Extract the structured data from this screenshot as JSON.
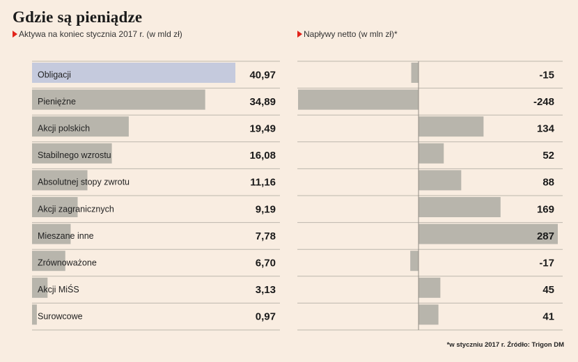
{
  "header": {
    "title": "Gdzie są pieniądze",
    "subtitle_left": "Aktywa na koniec stycznia 2017 r. (w mld zł)",
    "subtitle_right": "Napływy netto (w mln zł)*"
  },
  "colors": {
    "background": "#f9ede1",
    "bar": "#b8b5ac",
    "highlight_bar": "#c5cadd",
    "marker": "#e2231a",
    "grid": "#bcb6ac"
  },
  "chart_data": [
    {
      "type": "bar",
      "orientation": "horizontal",
      "title": "Aktywa na koniec stycznia 2017 r. (w mld zł)",
      "categories": [
        "Obligacji",
        "Pieniężne",
        "Akcji polskich",
        "Stabilnego wzrostu",
        "Absolutnej stopy zwrotu",
        "Akcji zagranicznych",
        "Mieszane inne",
        "Zrównoważone",
        "Akcji MiŚS",
        "Surowcowe"
      ],
      "values": [
        40.97,
        34.89,
        19.49,
        16.08,
        11.16,
        9.19,
        7.78,
        6.7,
        3.13,
        0.97
      ],
      "value_labels": [
        "40,97",
        "34,89",
        "19,49",
        "16,08",
        "11,16",
        "9,19",
        "7,78",
        "6,70",
        "3,13",
        "0,97"
      ],
      "highlight_index": 0,
      "xlim": [
        0,
        40.97
      ]
    },
    {
      "type": "bar",
      "orientation": "horizontal",
      "title": "Napływy netto (w mln zł)*",
      "categories": [
        "Obligacji",
        "Pieniężne",
        "Akcji polskich",
        "Stabilnego wzrostu",
        "Absolutnej stopy zwrotu",
        "Akcji zagranicznych",
        "Mieszane inne",
        "Zrównoważone",
        "Akcji MiŚS",
        "Surowcowe"
      ],
      "values": [
        -15,
        -248,
        134,
        52,
        88,
        169,
        287,
        -17,
        45,
        41
      ],
      "value_labels": [
        "-15",
        "-248",
        "134",
        "52",
        "88",
        "169",
        "287",
        "-17",
        "45",
        "41"
      ],
      "xlim": [
        -248,
        287
      ]
    }
  ],
  "footnote": "*w styczniu 2017 r. Źródło: Trigon DM"
}
